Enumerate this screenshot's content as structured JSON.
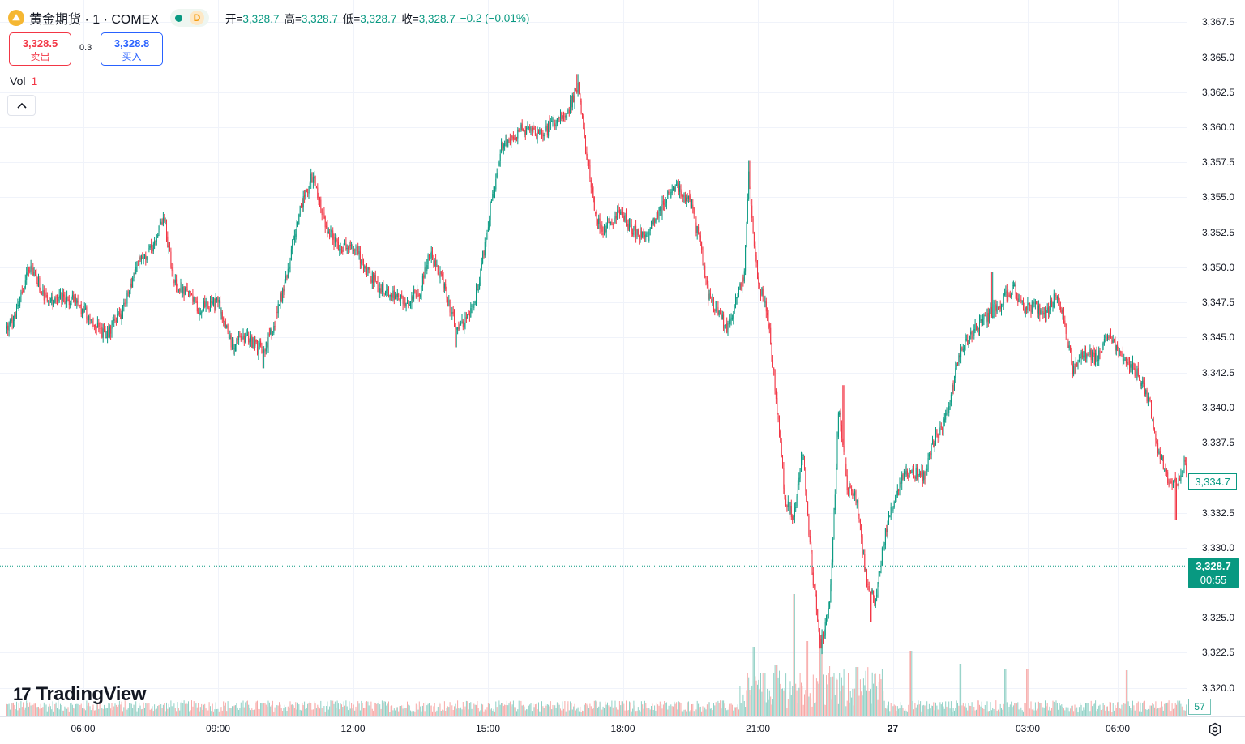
{
  "header": {
    "coin_glyph": "⛰",
    "title": "黄金期货 · 1 · COMEX",
    "status_letter": "D",
    "open_label": "开=",
    "open_value": "3,328.7",
    "high_label": "高=",
    "high_value": "3,328.7",
    "low_label": "低=",
    "low_value": "3,328.7",
    "close_label": "收=",
    "close_value": "3,328.7",
    "change": "−0.2 (−0.01%)"
  },
  "trade": {
    "sell_price": "3,328.5",
    "sell_label": "卖出",
    "spread": "0.3",
    "buy_price": "3,328.8",
    "buy_label": "买入"
  },
  "volume_legend": {
    "label": "Vol",
    "value": "1"
  },
  "watermark": {
    "mark": "17",
    "text": "TradingView"
  },
  "price_labels": {
    "last_price": "3,328.7",
    "countdown": "00:55",
    "crosshair_price": "3,334.7",
    "volume_value": "57"
  },
  "colors": {
    "up": "#089981",
    "down": "#f23645",
    "up_vol": "#8fd0c5",
    "down_vol": "#f7a9a7"
  },
  "chart_data": {
    "type": "candlestick",
    "timeframe": "1 minute",
    "price_ticks": [
      3367.5,
      3365.0,
      3362.5,
      3360.0,
      3357.5,
      3355.0,
      3352.5,
      3350.0,
      3347.5,
      3345.0,
      3342.5,
      3340.0,
      3337.5,
      3332.5,
      3330.0,
      3325.0,
      3322.5,
      3320.0
    ],
    "price_tick_labels": [
      "3,367.5",
      "3,365.0",
      "3,362.5",
      "3,360.0",
      "3,357.5",
      "3,355.0",
      "3,352.5",
      "3,350.0",
      "3,347.5",
      "3,345.0",
      "3,342.5",
      "3,340.0",
      "3,337.5",
      "3,332.5",
      "3,330.0",
      "3,325.0",
      "3,322.5",
      "3,320.0"
    ],
    "time_ticks": [
      {
        "label": "06:00",
        "hours": 0,
        "bold": false
      },
      {
        "label": "09:00",
        "hours": 3,
        "bold": false
      },
      {
        "label": "12:00",
        "hours": 6,
        "bold": false
      },
      {
        "label": "15:00",
        "hours": 9,
        "bold": false
      },
      {
        "label": "18:00",
        "hours": 12,
        "bold": false
      },
      {
        "label": "21:00",
        "hours": 15,
        "bold": false
      },
      {
        "label": "27",
        "hours": 18,
        "bold": true
      },
      {
        "label": "03:00",
        "hours": 21,
        "bold": false
      },
      {
        "label": "06:00",
        "hours": 23,
        "bold": false
      }
    ],
    "ylim": [
      3318.5,
      3369.0
    ],
    "xlim_hours": [
      -1.75,
      25.5
    ],
    "close_path": [
      [
        -1.75,
        3345.3
      ],
      [
        -1.5,
        3346.5
      ],
      [
        -1.2,
        3350.0
      ],
      [
        -1.0,
        3349.0
      ],
      [
        -0.8,
        3347.5
      ],
      [
        -0.5,
        3347.8
      ],
      [
        -0.2,
        3347.6
      ],
      [
        0.2,
        3346.2
      ],
      [
        0.5,
        3345.0
      ],
      [
        0.8,
        3346.5
      ],
      [
        1.0,
        3348.0
      ],
      [
        1.2,
        3350.5
      ],
      [
        1.4,
        3350.8
      ],
      [
        1.6,
        3351.5
      ],
      [
        1.8,
        3353.8
      ],
      [
        2.0,
        3349.0
      ],
      [
        2.3,
        3348.2
      ],
      [
        2.6,
        3347.0
      ],
      [
        3.0,
        3347.5
      ],
      [
        3.3,
        3344.5
      ],
      [
        3.6,
        3345.0
      ],
      [
        4.0,
        3344.0
      ],
      [
        4.2,
        3345.5
      ],
      [
        4.5,
        3349.0
      ],
      [
        4.8,
        3354.0
      ],
      [
        5.1,
        3356.5
      ],
      [
        5.4,
        3353.0
      ],
      [
        5.7,
        3351.5
      ],
      [
        6.0,
        3351.5
      ],
      [
        6.3,
        3349.8
      ],
      [
        6.6,
        3348.5
      ],
      [
        6.9,
        3348.0
      ],
      [
        7.2,
        3347.5
      ],
      [
        7.5,
        3348.5
      ],
      [
        7.7,
        3351.0
      ],
      [
        8.0,
        3349.0
      ],
      [
        8.3,
        3345.5
      ],
      [
        8.6,
        3346.5
      ],
      [
        8.8,
        3349.0
      ],
      [
        9.1,
        3355.0
      ],
      [
        9.3,
        3358.5
      ],
      [
        9.6,
        3359.5
      ],
      [
        9.9,
        3360.0
      ],
      [
        10.2,
        3359.5
      ],
      [
        10.5,
        3360.5
      ],
      [
        10.8,
        3361.2
      ],
      [
        11.0,
        3363.0
      ],
      [
        11.2,
        3357.8
      ],
      [
        11.4,
        3353.5
      ],
      [
        11.6,
        3352.5
      ],
      [
        11.9,
        3354.0
      ],
      [
        12.2,
        3352.8
      ],
      [
        12.5,
        3352.0
      ],
      [
        12.8,
        3353.8
      ],
      [
        13.0,
        3355.2
      ],
      [
        13.2,
        3356.0
      ],
      [
        13.5,
        3354.5
      ],
      [
        13.7,
        3352.0
      ],
      [
        13.9,
        3348.0
      ],
      [
        14.1,
        3347.0
      ],
      [
        14.3,
        3345.5
      ],
      [
        14.5,
        3347.5
      ],
      [
        14.7,
        3349.5
      ],
      [
        14.8,
        3357.0
      ],
      [
        14.9,
        3352.0
      ],
      [
        15.0,
        3349.0
      ],
      [
        15.2,
        3347.0
      ],
      [
        15.4,
        3341.0
      ],
      [
        15.6,
        3333.5
      ],
      [
        15.8,
        3332.0
      ],
      [
        16.0,
        3337.0
      ],
      [
        16.2,
        3328.5
      ],
      [
        16.4,
        3323.0
      ],
      [
        16.6,
        3326.0
      ],
      [
        16.8,
        3340.0
      ],
      [
        17.0,
        3334.0
      ],
      [
        17.2,
        3333.5
      ],
      [
        17.4,
        3328.0
      ],
      [
        17.6,
        3326.0
      ],
      [
        17.8,
        3330.5
      ],
      [
        18.0,
        3333.0
      ],
      [
        18.2,
        3335.0
      ],
      [
        18.4,
        3335.5
      ],
      [
        18.7,
        3335.0
      ],
      [
        18.9,
        3337.5
      ],
      [
        19.2,
        3339.5
      ],
      [
        19.5,
        3344.0
      ],
      [
        19.8,
        3345.5
      ],
      [
        20.1,
        3346.5
      ],
      [
        20.4,
        3347.5
      ],
      [
        20.7,
        3348.5
      ],
      [
        20.9,
        3347.0
      ],
      [
        21.1,
        3347.2
      ],
      [
        21.4,
        3346.5
      ],
      [
        21.6,
        3347.8
      ],
      [
        21.8,
        3346.5
      ],
      [
        22.0,
        3342.5
      ],
      [
        22.2,
        3344.0
      ],
      [
        22.5,
        3343.5
      ],
      [
        22.8,
        3345.0
      ],
      [
        23.0,
        3344.0
      ],
      [
        23.3,
        3343.0
      ],
      [
        23.5,
        3342.0
      ],
      [
        23.7,
        3340.5
      ],
      [
        23.9,
        3337.0
      ],
      [
        24.1,
        3335.0
      ],
      [
        24.3,
        3334.5
      ],
      [
        24.5,
        3336.0
      ],
      [
        24.7,
        3333.0
      ],
      [
        24.9,
        3334.5
      ],
      [
        25.1,
        3335.5
      ],
      [
        25.3,
        3335.0
      ],
      [
        25.5,
        3334.7
      ]
    ],
    "high_points": [
      [
        11.0,
        3363.8
      ],
      [
        14.8,
        3357.6
      ],
      [
        5.1,
        3356.8
      ],
      [
        20.2,
        3349.7
      ],
      [
        16.9,
        3341.6
      ]
    ],
    "low_points": [
      [
        16.4,
        3322.8
      ],
      [
        17.5,
        3324.7
      ],
      [
        4.0,
        3342.8
      ],
      [
        8.3,
        3344.3
      ],
      [
        24.3,
        3332.0
      ]
    ],
    "last_price": 3328.7,
    "crosshair_price": 3334.7,
    "volume_spikes": [
      [
        14.9,
        85
      ],
      [
        15.4,
        63
      ],
      [
        15.8,
        150
      ],
      [
        16.1,
        92
      ],
      [
        16.4,
        100
      ],
      [
        17.2,
        60
      ],
      [
        18.4,
        80
      ],
      [
        19.5,
        64
      ],
      [
        20.5,
        58
      ],
      [
        21.0,
        58
      ],
      [
        23.2,
        56
      ],
      [
        24.6,
        57
      ]
    ]
  }
}
